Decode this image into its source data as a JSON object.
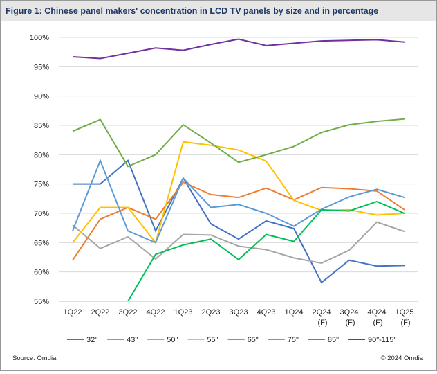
{
  "chart_data": {
    "type": "line",
    "title": "Figure 1: Chinese panel makers' concentration in LCD TV panels by size and in percentage",
    "categories": [
      "1Q22",
      "2Q22",
      "3Q22",
      "4Q22",
      "1Q23",
      "2Q23",
      "3Q23",
      "4Q23",
      "1Q24",
      "2Q24 (F)",
      "3Q24 (F)",
      "4Q24 (F)",
      "1Q25 (F)"
    ],
    "series": [
      {
        "name": "32\"",
        "color": "#4472c4",
        "values": [
          75,
          75,
          79,
          67,
          76,
          68.2,
          65.6,
          68.7,
          67.4,
          58.2,
          62,
          61,
          61.1
        ]
      },
      {
        "name": "43\"",
        "color": "#ed7d31",
        "values": [
          62,
          69,
          71,
          69,
          75.3,
          73.2,
          72.7,
          74.3,
          72.3,
          74.4,
          74.2,
          73.8,
          70.6
        ]
      },
      {
        "name": "50\"",
        "color": "#a5a5a5",
        "values": [
          68,
          64,
          66,
          62.2,
          66.4,
          66.3,
          64.4,
          63.8,
          62.4,
          61.5,
          63.7,
          68.5,
          66.9
        ]
      },
      {
        "name": "55\"",
        "color": "#ffc000",
        "values": [
          65,
          71,
          71,
          65,
          82.2,
          81.6,
          80.8,
          78.9,
          72.2,
          70.5,
          70.6,
          69.7,
          70
        ]
      },
      {
        "name": "65\"",
        "color": "#5b9bd5",
        "values": [
          67,
          79,
          67,
          65,
          76,
          71,
          71.5,
          70,
          67.8,
          70.7,
          72.8,
          74.1,
          72.7
        ]
      },
      {
        "name": "75\"",
        "color": "#70ad47",
        "values": [
          84,
          86,
          78,
          80,
          85.1,
          82,
          78.7,
          80,
          81.4,
          83.8,
          85.1,
          85.7,
          86.1
        ]
      },
      {
        "name": "85\"",
        "color": "#00c05a",
        "values": [
          null,
          null,
          55,
          63,
          64.6,
          65.6,
          62.1,
          66.4,
          65.2,
          70.6,
          70.4,
          72,
          70
        ]
      },
      {
        "name": "90\"-115\"",
        "color": "#7030a0",
        "values": [
          96.7,
          96.4,
          97.3,
          98.2,
          97.8,
          98.8,
          99.7,
          98.6,
          99,
          99.4,
          99.5,
          99.6,
          99.2
        ]
      }
    ],
    "ylim": [
      55,
      100
    ],
    "yticks": [
      {
        "value": 55,
        "label": "55%"
      },
      {
        "value": 60,
        "label": "60%"
      },
      {
        "value": 65,
        "label": "65%"
      },
      {
        "value": 70,
        "label": "70%"
      },
      {
        "value": 75,
        "label": "75%"
      },
      {
        "value": 80,
        "label": "80%"
      },
      {
        "value": 85,
        "label": "85%"
      },
      {
        "value": 90,
        "label": "90%"
      },
      {
        "value": 95,
        "label": "95%"
      },
      {
        "value": 100,
        "label": "100%"
      }
    ],
    "grid": true,
    "legend": "bottom",
    "source": "Source: Omdia",
    "copyright": "© 2024 Omdia"
  }
}
